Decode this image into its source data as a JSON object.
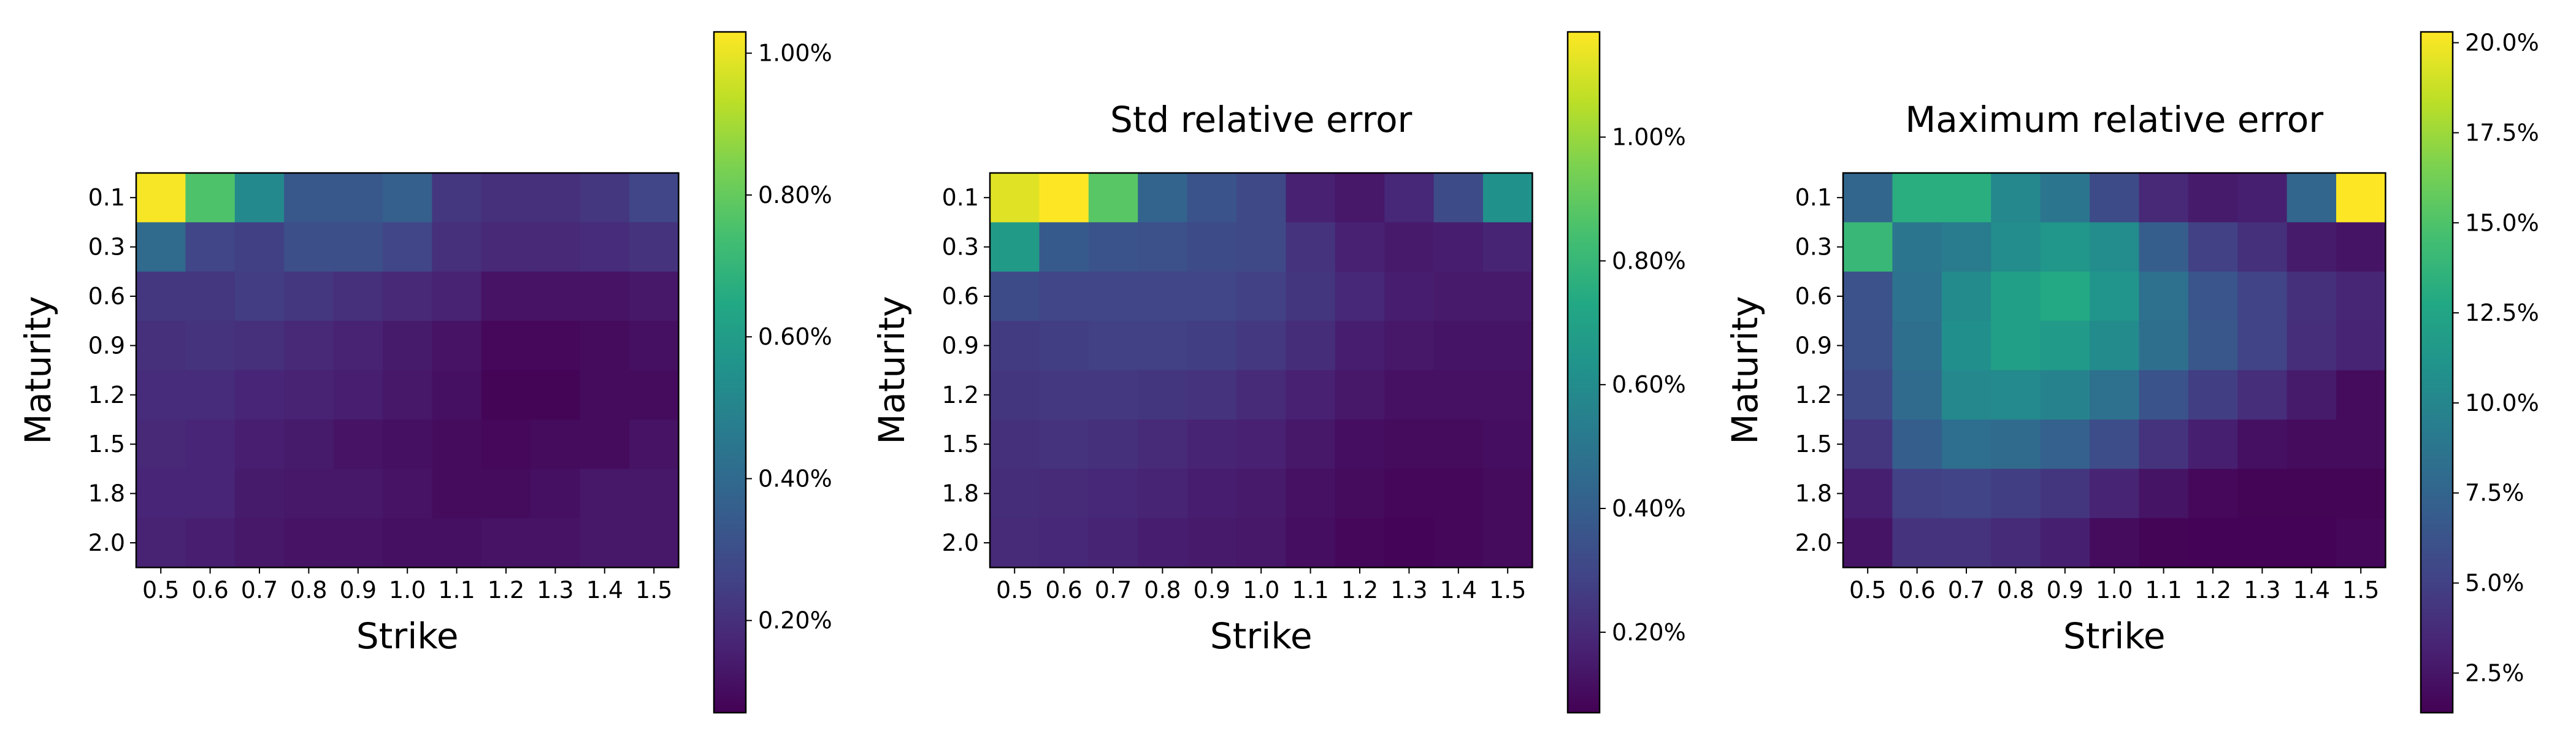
{
  "chart_data": [
    {
      "type": "heatmap",
      "title": "",
      "xlabel": "Strike",
      "ylabel": "Maturity",
      "x_categories": [
        "0.5",
        "0.6",
        "0.7",
        "0.8",
        "0.9",
        "1.0",
        "1.1",
        "1.2",
        "1.3",
        "1.4",
        "1.5"
      ],
      "y_categories": [
        "0.1",
        "0.3",
        "0.6",
        "0.9",
        "1.2",
        "1.5",
        "1.8",
        "2.0"
      ],
      "colorbar": {
        "range": [
          0.07,
          1.03
        ],
        "ticks": [
          0.2,
          0.4,
          0.6,
          0.8,
          1.0
        ],
        "tick_labels": [
          "0.20%",
          "0.40%",
          "0.60%",
          "0.80%",
          "1.00%"
        ],
        "unit": "%"
      },
      "values": [
        [
          1.02,
          0.76,
          0.52,
          0.33,
          0.33,
          0.36,
          0.22,
          0.2,
          0.2,
          0.22,
          0.27
        ],
        [
          0.4,
          0.27,
          0.25,
          0.3,
          0.3,
          0.27,
          0.2,
          0.18,
          0.18,
          0.19,
          0.21
        ],
        [
          0.22,
          0.22,
          0.24,
          0.22,
          0.2,
          0.18,
          0.16,
          0.12,
          0.12,
          0.12,
          0.13
        ],
        [
          0.2,
          0.21,
          0.2,
          0.18,
          0.16,
          0.14,
          0.12,
          0.09,
          0.09,
          0.1,
          0.11
        ],
        [
          0.19,
          0.19,
          0.17,
          0.16,
          0.15,
          0.13,
          0.11,
          0.08,
          0.08,
          0.1,
          0.1
        ],
        [
          0.18,
          0.17,
          0.15,
          0.14,
          0.12,
          0.11,
          0.1,
          0.09,
          0.1,
          0.1,
          0.12
        ],
        [
          0.17,
          0.17,
          0.14,
          0.13,
          0.13,
          0.12,
          0.1,
          0.1,
          0.11,
          0.13,
          0.13
        ],
        [
          0.16,
          0.15,
          0.13,
          0.12,
          0.12,
          0.11,
          0.11,
          0.12,
          0.12,
          0.13,
          0.13
        ]
      ]
    },
    {
      "type": "heatmap",
      "title": "Std relative error",
      "xlabel": "Strike",
      "ylabel": "Maturity",
      "x_categories": [
        "0.5",
        "0.6",
        "0.7",
        "0.8",
        "0.9",
        "1.0",
        "1.1",
        "1.2",
        "1.3",
        "1.4",
        "1.5"
      ],
      "y_categories": [
        "0.1",
        "0.3",
        "0.6",
        "0.9",
        "1.2",
        "1.5",
        "1.8",
        "2.0"
      ],
      "colorbar": {
        "range": [
          0.07,
          1.17
        ],
        "ticks": [
          0.2,
          0.4,
          0.6,
          0.8,
          1.0
        ],
        "tick_labels": [
          "0.20%",
          "0.40%",
          "0.60%",
          "0.80%",
          "1.00%"
        ],
        "unit": "%"
      },
      "values": [
        [
          1.12,
          1.17,
          0.88,
          0.42,
          0.35,
          0.31,
          0.17,
          0.14,
          0.19,
          0.32,
          0.62
        ],
        [
          0.67,
          0.38,
          0.35,
          0.34,
          0.32,
          0.31,
          0.23,
          0.17,
          0.15,
          0.16,
          0.18
        ],
        [
          0.32,
          0.3,
          0.3,
          0.3,
          0.3,
          0.28,
          0.24,
          0.19,
          0.16,
          0.15,
          0.15
        ],
        [
          0.26,
          0.27,
          0.28,
          0.28,
          0.27,
          0.25,
          0.21,
          0.16,
          0.14,
          0.13,
          0.13
        ],
        [
          0.24,
          0.25,
          0.25,
          0.24,
          0.23,
          0.2,
          0.17,
          0.14,
          0.12,
          0.12,
          0.12
        ],
        [
          0.22,
          0.23,
          0.22,
          0.2,
          0.18,
          0.17,
          0.14,
          0.11,
          0.1,
          0.1,
          0.11
        ],
        [
          0.21,
          0.2,
          0.19,
          0.18,
          0.16,
          0.15,
          0.12,
          0.1,
          0.09,
          0.09,
          0.1
        ],
        [
          0.2,
          0.19,
          0.18,
          0.16,
          0.15,
          0.14,
          0.11,
          0.09,
          0.08,
          0.09,
          0.1
        ]
      ]
    },
    {
      "type": "heatmap",
      "title": "Maximum relative error",
      "xlabel": "Strike",
      "ylabel": "Maturity",
      "x_categories": [
        "0.5",
        "0.6",
        "0.7",
        "0.8",
        "0.9",
        "1.0",
        "1.1",
        "1.2",
        "1.3",
        "1.4",
        "1.5"
      ],
      "y_categories": [
        "0.1",
        "0.3",
        "0.6",
        "0.9",
        "1.2",
        "1.5",
        "1.8",
        "2.0"
      ],
      "colorbar": {
        "range": [
          1.4,
          20.3
        ],
        "ticks": [
          2.5,
          5.0,
          7.5,
          10.0,
          12.5,
          15.0,
          17.5,
          20.0
        ],
        "tick_labels": [
          "2.5%",
          "5.0%",
          "7.5%",
          "10.0%",
          "12.5%",
          "15.0%",
          "17.5%",
          "20.0%"
        ],
        "unit": "%"
      },
      "values": [
        [
          7.6,
          13.2,
          13.2,
          10.2,
          8.8,
          5.7,
          3.6,
          2.8,
          3.0,
          7.6,
          20.3
        ],
        [
          14.0,
          8.8,
          9.3,
          10.5,
          11.3,
          10.5,
          7.0,
          5.0,
          4.0,
          2.8,
          2.4
        ],
        [
          6.2,
          8.5,
          10.4,
          12.1,
          12.8,
          11.2,
          8.4,
          6.4,
          5.2,
          4.0,
          3.4
        ],
        [
          6.0,
          8.3,
          10.8,
          12.0,
          11.6,
          10.4,
          8.3,
          6.5,
          5.2,
          3.9,
          3.3
        ],
        [
          5.5,
          8.0,
          10.2,
          10.3,
          9.8,
          8.4,
          6.3,
          4.8,
          3.9,
          2.8,
          2.0
        ],
        [
          4.4,
          7.0,
          8.2,
          8.0,
          7.2,
          5.8,
          4.2,
          3.0,
          2.2,
          2.0,
          2.0
        ],
        [
          3.0,
          5.0,
          5.2,
          4.8,
          4.3,
          3.3,
          2.4,
          1.8,
          1.6,
          1.6,
          1.6
        ],
        [
          2.4,
          4.2,
          4.2,
          3.7,
          3.0,
          2.0,
          1.6,
          1.5,
          1.5,
          1.5,
          1.7
        ]
      ]
    }
  ]
}
